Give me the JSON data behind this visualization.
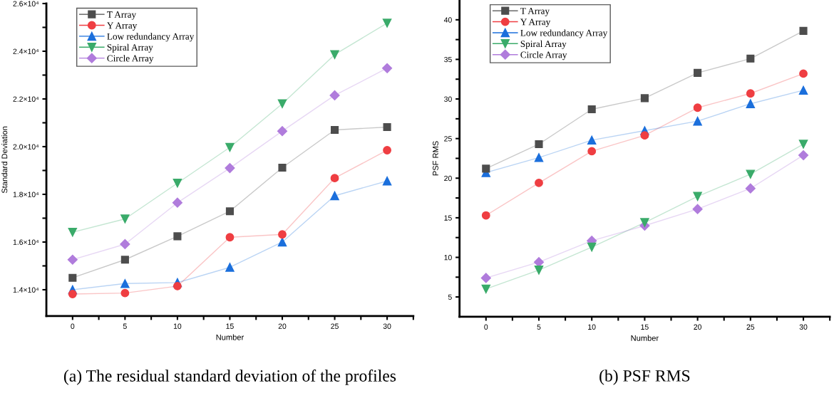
{
  "chart_data": [
    {
      "type": "line",
      "xlabel": "Number",
      "ylabel": "Standard Deviation",
      "annotations": [
        "(a) The residual standard deviation of the profiles"
      ],
      "x": [
        0,
        5,
        10,
        15,
        20,
        25,
        30
      ],
      "xlim": [
        -2.5,
        32.5
      ],
      "xticks": [
        0,
        {
          "value": 2.5,
          "label": null
        },
        5,
        {
          "value": 7.5,
          "label": null
        },
        10,
        {
          "value": 12.5,
          "label": null
        },
        15,
        {
          "value": 17.5,
          "label": null
        },
        20,
        {
          "value": 22.5,
          "label": null
        },
        25,
        {
          "value": 27.5,
          "label": null
        },
        30,
        {
          "value": 32.5,
          "label": null
        }
      ],
      "ylim": [
        12900,
        26000
      ],
      "yticks": [
        {
          "value": 14000,
          "label": "1.4×10⁴"
        },
        {
          "value": 15000,
          "label": null
        },
        {
          "value": 16000,
          "label": "1.6×10⁴"
        },
        {
          "value": 17000,
          "label": null
        },
        {
          "value": 18000,
          "label": "1.8×10⁴"
        },
        {
          "value": 19000,
          "label": null
        },
        {
          "value": 20000,
          "label": "2.0×10⁴"
        },
        {
          "value": 21000,
          "label": null
        },
        {
          "value": 22000,
          "label": "2.2×10⁴"
        },
        {
          "value": 23000,
          "label": null
        },
        {
          "value": 24000,
          "label": "2.4×10⁴"
        },
        {
          "value": 25000,
          "label": null
        },
        {
          "value": 26000,
          "label": "2.6×10⁴"
        }
      ],
      "grid": false,
      "legend": "top left",
      "series": [
        {
          "name": "T Array",
          "color": "#4d4d4d",
          "marker": "square",
          "values": [
            14500,
            15260,
            16240,
            17290,
            19120,
            20700,
            20820
          ]
        },
        {
          "name": "Y Array",
          "color": "#ef3e42",
          "marker": "circle",
          "values": [
            13820,
            13860,
            14150,
            16200,
            16320,
            18680,
            19850
          ]
        },
        {
          "name": "Low redundancy Array",
          "color": "#1b6fdc",
          "marker": "triangle",
          "values": [
            14000,
            14260,
            14300,
            14940,
            16000,
            17940,
            18560
          ]
        },
        {
          "name": "Spiral Array",
          "color": "#3aab6a",
          "marker": "triangle_down",
          "values": [
            16410,
            16970,
            18470,
            19970,
            21800,
            23860,
            25180
          ]
        },
        {
          "name": "Circle Array",
          "color": "#b07cdc",
          "marker": "diamond",
          "values": [
            15260,
            15910,
            17650,
            19100,
            20650,
            22150,
            23290
          ]
        }
      ]
    },
    {
      "type": "line",
      "xlabel": "Number",
      "ylabel": "PSF RMS",
      "annotations": [
        "(b) PSF RMS"
      ],
      "x": [
        0,
        5,
        10,
        15,
        20,
        25,
        30
      ],
      "xlim": [
        -2.5,
        32.5
      ],
      "xticks": [
        0,
        {
          "value": 2.5,
          "label": null
        },
        5,
        {
          "value": 7.5,
          "label": null
        },
        10,
        {
          "value": 12.5,
          "label": null
        },
        15,
        {
          "value": 17.5,
          "label": null
        },
        20,
        {
          "value": 22.5,
          "label": null
        },
        25,
        {
          "value": 27.5,
          "label": null
        },
        30,
        {
          "value": 32.5,
          "label": null
        }
      ],
      "ylim": [
        2.5,
        42.5
      ],
      "yticks": [
        5,
        {
          "value": 7.5,
          "label": null
        },
        10,
        {
          "value": 12.5,
          "label": null
        },
        15,
        {
          "value": 17.5,
          "label": null
        },
        20,
        {
          "value": 22.5,
          "label": null
        },
        25,
        {
          "value": 27.5,
          "label": null
        },
        30,
        {
          "value": 32.5,
          "label": null
        },
        35,
        {
          "value": 37.5,
          "label": null
        },
        40
      ],
      "grid": false,
      "legend": "top left",
      "series": [
        {
          "name": "T Array",
          "color": "#4d4d4d",
          "marker": "square",
          "values": [
            21.2,
            24.3,
            28.7,
            30.1,
            33.3,
            35.1,
            38.6
          ]
        },
        {
          "name": "Y Array",
          "color": "#ef3e42",
          "marker": "circle",
          "values": [
            15.3,
            19.4,
            23.4,
            25.4,
            28.9,
            30.7,
            33.2
          ]
        },
        {
          "name": "Low redundancy Array",
          "color": "#1b6fdc",
          "marker": "triangle",
          "values": [
            20.7,
            22.6,
            24.8,
            26.0,
            27.2,
            29.4,
            31.1
          ]
        },
        {
          "name": "Spiral Array",
          "color": "#3aab6a",
          "marker": "triangle_down",
          "values": [
            6.0,
            8.4,
            11.3,
            14.4,
            17.7,
            20.5,
            24.3
          ]
        },
        {
          "name": "Circle Array",
          "color": "#b07cdc",
          "marker": "diamond",
          "values": [
            7.4,
            9.4,
            12.1,
            14.0,
            16.1,
            18.7,
            22.9
          ]
        }
      ]
    }
  ]
}
